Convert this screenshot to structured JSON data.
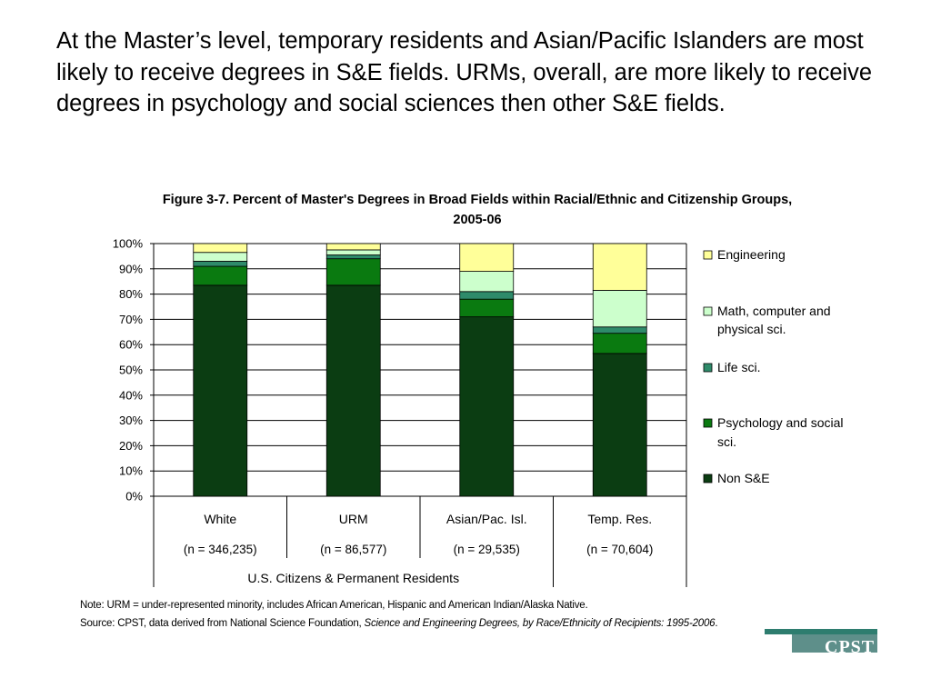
{
  "headline": "At the Master’s level, temporary residents and Asian/Pacific Islanders are most likely to receive degrees in S&E fields. URMs, overall, are more likely to receive degrees in psychology and social sciences then other S&E fields.",
  "note": {
    "line1": "Note: URM = under-represented minority, includes African American, Hispanic and American Indian/Alaska Native.",
    "source_prefix": "Source: CPST, data derived from National Science Foundation, ",
    "source_italic": "Science and Engineering Degrees, by Race/Ethnicity of Recipients: 1995-2006",
    "source_suffix": "."
  },
  "logo": {
    "text": "CPST"
  },
  "chart_data": {
    "type": "bar",
    "stacked": true,
    "title": "Figure 3-7. Percent of Master's Degrees in Broad Fields within Racial/Ethnic and Citizenship Groups, 2005-06",
    "categories": [
      "White",
      "URM",
      "Asian/Pac. Isl.",
      "Temp. Res."
    ],
    "category_counts": [
      "(n = 346,235)",
      "(n = 86,577)",
      "(n = 29,535)",
      "(n = 70,604)"
    ],
    "group_label": "U.S. Citizens & Permanent Residents",
    "group_members": [
      "White",
      "URM",
      "Asian/Pac. Isl."
    ],
    "ylim": [
      0,
      100
    ],
    "yticks": [
      "0%",
      "10%",
      "20%",
      "30%",
      "40%",
      "50%",
      "60%",
      "70%",
      "80%",
      "90%",
      "100%"
    ],
    "grid": true,
    "legend_position": "right",
    "series": [
      {
        "name": "Non S&E",
        "color": "#0b3d12",
        "values": [
          83.5,
          83.5,
          71,
          56.5
        ]
      },
      {
        "name": "Psychology and social sci.",
        "color": "#0a7a10",
        "values": [
          7.5,
          10.5,
          7,
          8
        ]
      },
      {
        "name": "Life sci.",
        "color": "#2e8b6a",
        "values": [
          2,
          1.5,
          3,
          2.5
        ]
      },
      {
        "name": "Math, computer and physical sci.",
        "color": "#ccffcc",
        "values": [
          3.5,
          2,
          8,
          14.5
        ]
      },
      {
        "name": "Engineering",
        "color": "#ffff99",
        "values": [
          3.5,
          2.5,
          11,
          18.5
        ]
      }
    ]
  }
}
